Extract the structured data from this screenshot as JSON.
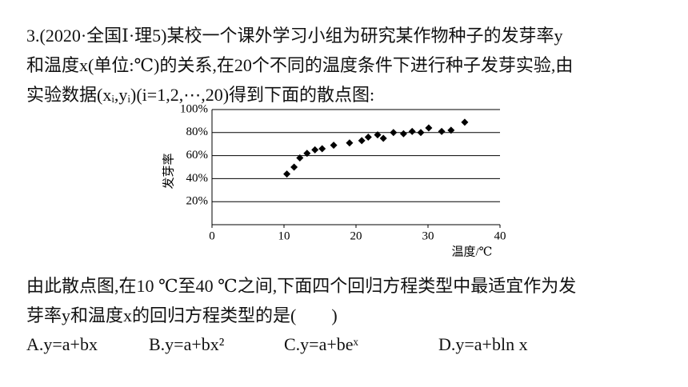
{
  "question": {
    "lines": [
      "3.(2020·全国Ⅰ·理5)某校一个课外学习小组为研究某作物种子的发芽率y",
      "和温度x(单位:℃)的关系,在20个不同的温度条件下进行种子发芽实验,由",
      "实验数据(xᵢ,yᵢ)(i=1,2,⋯,20)得到下面的散点图:"
    ]
  },
  "chart_data": {
    "type": "scatter",
    "x_label": "温度/℃",
    "y_label": "发芽率",
    "x": [
      10.4,
      11.4,
      12.2,
      13.2,
      14.3,
      15.3,
      16.9,
      19.1,
      20.8,
      21.7,
      23,
      23.8,
      25.2,
      26.6,
      27.8,
      29,
      30.1,
      31.9,
      33.2,
      35.1
    ],
    "values": [
      44,
      50,
      58,
      62,
      65,
      66,
      69,
      71,
      73,
      76,
      78,
      75,
      80,
      79,
      81,
      80,
      84,
      81,
      82,
      89
    ],
    "color": "#000000",
    "xlim": [
      0,
      40
    ],
    "xticks": [
      0,
      10,
      20,
      30,
      40
    ],
    "ylim": [
      0,
      100
    ],
    "yticks": [
      {
        "value": 20,
        "label": "20%"
      },
      {
        "value": 40,
        "label": "40%"
      },
      {
        "value": 60,
        "label": "60%"
      },
      {
        "value": 80,
        "label": "80%"
      },
      {
        "value": 100,
        "label": "100%"
      }
    ],
    "grid": true
  },
  "conclusion": {
    "lines": [
      "由此散点图,在10 ℃至40 ℃之间,下面四个回归方程类型中最适宜作为发",
      "芽率y和温度x的回归方程类型的是(　　)"
    ]
  },
  "options": [
    "A.y=a+bx",
    "B.y=a+bx²",
    "C.y=a+beˣ",
    "D.y=a+bln x"
  ]
}
